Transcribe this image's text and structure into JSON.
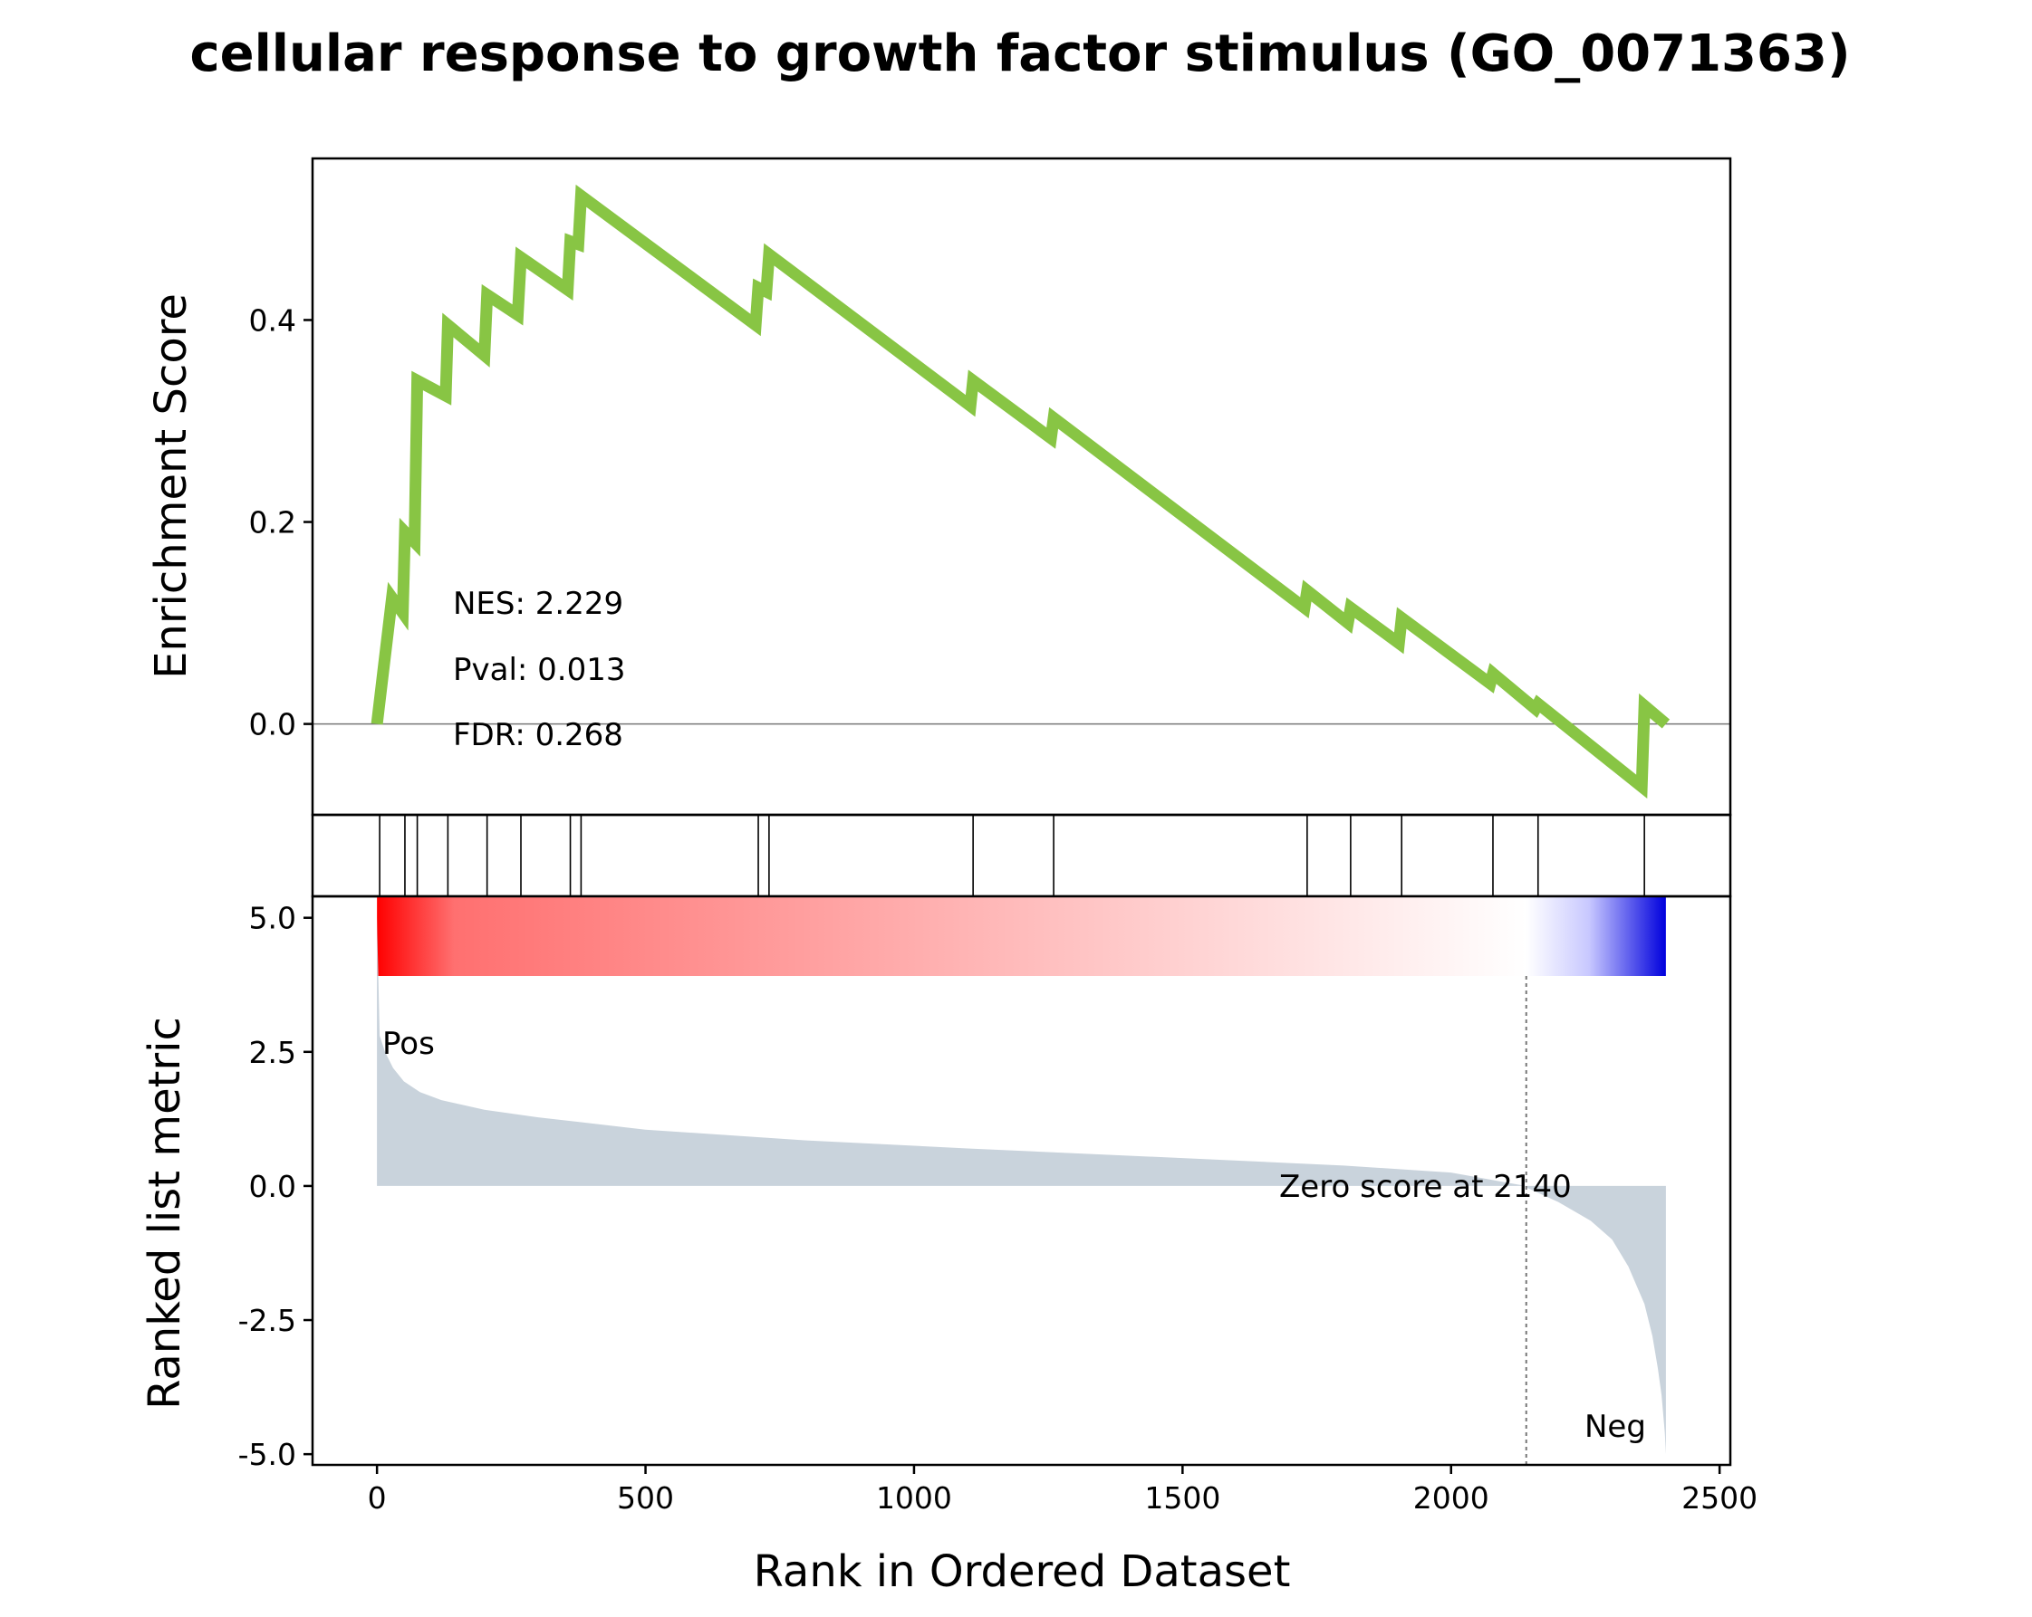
{
  "chart_data": {
    "type": "line",
    "title": "cellular response to growth factor stimulus (GO_0071363)",
    "xlabel": "Rank in Ordered Dataset",
    "xlim": [
      -120,
      2520
    ],
    "x_ticks": [
      "0",
      "500",
      "1000",
      "1500",
      "2000",
      "2500"
    ],
    "n_genes": 2400,
    "enrichment_panel": {
      "ylabel": "Enrichment Score",
      "ylim": [
        -0.09,
        0.56
      ],
      "y_ticks": [
        "0.0",
        "0.2",
        "0.4"
      ],
      "line_color": "#88c544",
      "zero_line": true,
      "stats": {
        "nes": "NES: 2.229",
        "pval": "Pval: 0.013",
        "fdr": "FDR: 0.268"
      },
      "running_es": {
        "x": [
          0,
          0,
          28,
          48,
          52,
          70,
          75,
          128,
          132,
          200,
          205,
          262,
          268,
          355,
          360,
          375,
          380,
          705,
          710,
          725,
          730,
          1105,
          1110,
          1255,
          1260,
          1727,
          1732,
          1808,
          1813,
          1903,
          1908,
          2073,
          2078,
          2157,
          2162,
          2355,
          2360,
          2400
        ],
        "y": [
          0.0,
          0.0,
          0.125,
          0.11,
          0.19,
          0.18,
          0.34,
          0.325,
          0.395,
          0.365,
          0.425,
          0.405,
          0.462,
          0.43,
          0.478,
          0.475,
          0.523,
          0.395,
          0.432,
          0.428,
          0.465,
          0.315,
          0.34,
          0.283,
          0.303,
          0.115,
          0.132,
          0.1,
          0.115,
          0.08,
          0.105,
          0.04,
          0.05,
          0.015,
          0.02,
          -0.062,
          0.018,
          0.0
        ]
      }
    },
    "hits_panel": {
      "hit_ranks": [
        5,
        52,
        75,
        132,
        205,
        268,
        360,
        380,
        710,
        730,
        1110,
        1260,
        1732,
        1813,
        1908,
        2078,
        2162,
        2360
      ]
    },
    "ranked_panel": {
      "ylabel": "Ranked list metric",
      "ylim": [
        -5.2,
        5.4
      ],
      "y_ticks": [
        "5.0",
        "2.5",
        "0.0",
        "-2.5",
        "-5.0"
      ],
      "fill_color": "#c9d3dc",
      "pos_label": "Pos",
      "neg_label": "Neg",
      "zero_score_text": "Zero score at 2140",
      "zero_cross": 2140,
      "colorbar": {
        "pos_color": "#ff0000",
        "neg_color": "#0000dd"
      },
      "metric": {
        "x": [
          0,
          5,
          15,
          30,
          50,
          80,
          120,
          200,
          300,
          500,
          800,
          1100,
          1500,
          1800,
          2000,
          2139,
          2141,
          2200,
          2260,
          2300,
          2330,
          2360,
          2375,
          2385,
          2392,
          2398,
          2400
        ],
        "y": [
          5.0,
          2.8,
          2.5,
          2.2,
          1.95,
          1.75,
          1.6,
          1.42,
          1.28,
          1.05,
          0.85,
          0.7,
          0.52,
          0.38,
          0.25,
          0.0,
          -0.03,
          -0.3,
          -0.65,
          -1.0,
          -1.5,
          -2.2,
          -2.8,
          -3.4,
          -3.9,
          -4.6,
          -5.0
        ]
      }
    }
  }
}
